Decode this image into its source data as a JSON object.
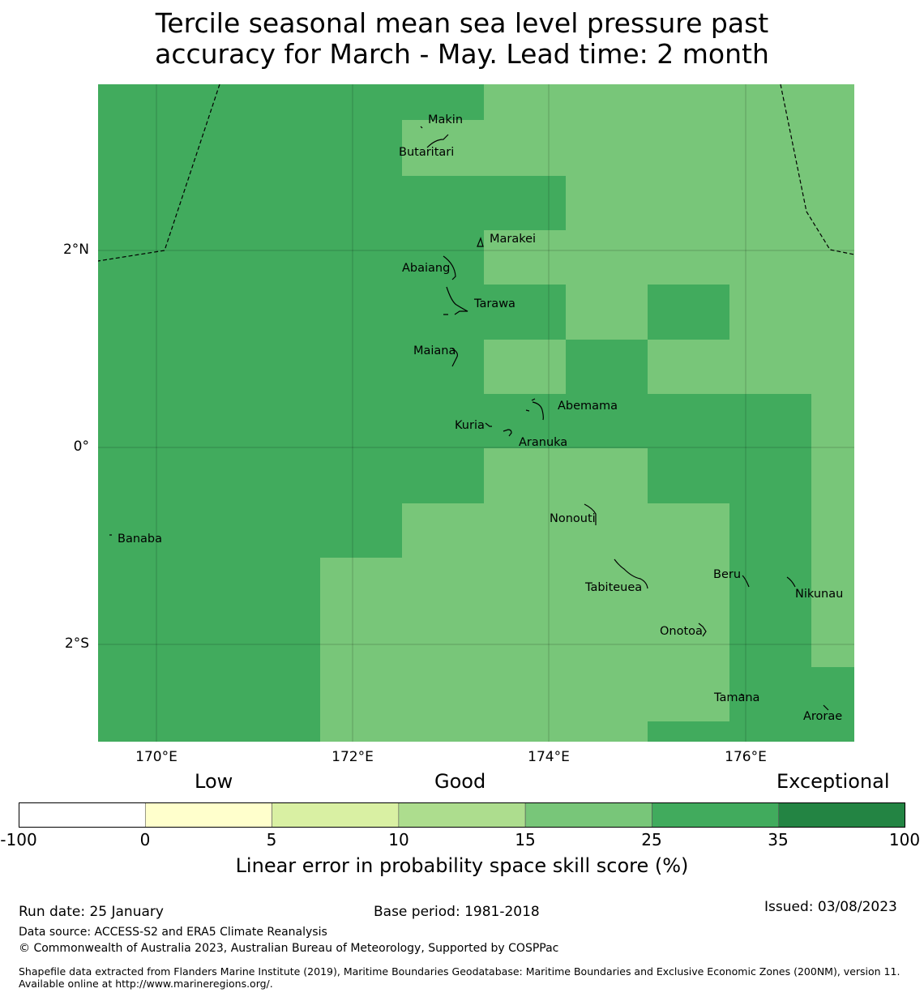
{
  "title_line1": "Tercile seasonal mean sea level pressure past",
  "title_line2": "accuracy for March - May. Lead time: 2 month",
  "map": {
    "lat_labels": [
      "2°N",
      "0°",
      "2°S"
    ],
    "lon_labels": [
      "170°E",
      "172°E",
      "174°E",
      "176°E"
    ],
    "places": [
      "Makin",
      "Butaritari",
      "Marakei",
      "Abaiang",
      "Tarawa",
      "Maiana",
      "Abemama",
      "Kuria",
      "Aranuka",
      "Banaba",
      "Nonouti",
      "Beru",
      "Tabiteuea",
      "Nikunau",
      "Onotoa",
      "Tamana",
      "Arorae"
    ],
    "cell_legend": {
      "mid_green": "25-35",
      "light_green": "15-25"
    }
  },
  "colorbar": {
    "categories": [
      "Low",
      "Good",
      "Exceptional"
    ],
    "ticks": [
      "-100",
      "0",
      "5",
      "10",
      "15",
      "25",
      "35",
      "100"
    ],
    "colors": [
      "#ffffff",
      "#ffffcc",
      "#d9f0a3",
      "#addd8e",
      "#78c679",
      "#41ab5d",
      "#238443"
    ],
    "label": "Linear error in probability space skill score (%)"
  },
  "footer": {
    "run_date": "Run date: 25 January",
    "base_period": "Base period: 1981-2018",
    "issued": "Issued: 03/08/2023",
    "data_source": "Data source: ACCESS-S2 and ERA5 Climate Reanalysis",
    "copyright": "© Commonwealth of Australia 2023, Australian Bureau of Meteorology, Supported by COSPPac",
    "shapefile": "Shapefile data extracted from Flanders Marine Institute (2019), Maritime Boundaries Geodatabase: Maritime Boundaries and Exclusive Economic Zones (200NM), version 11. Available online at http://www.marineregions.org/."
  }
}
